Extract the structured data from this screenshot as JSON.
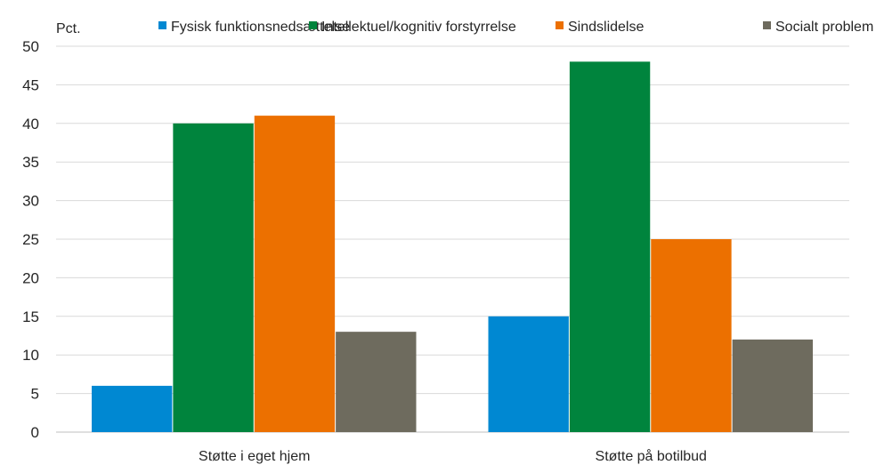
{
  "chart_data": {
    "type": "bar",
    "ylabel": "Pct.",
    "categories": [
      "Støtte i eget hjem",
      "Støtte på botilbud"
    ],
    "series": [
      {
        "name": "Fysisk funktionsnedsættelse",
        "color": "#0088d2",
        "values": [
          6,
          15
        ]
      },
      {
        "name": "Intellektuel/kognitiv forstyrrelse",
        "color": "#00843d",
        "values": [
          40,
          48
        ]
      },
      {
        "name": "Sindslidelse",
        "color": "#ec7000",
        "values": [
          41,
          25
        ]
      },
      {
        "name": "Socialt problem",
        "color": "#6e6b5e",
        "values": [
          13,
          12
        ]
      }
    ],
    "ylim": [
      0,
      50
    ],
    "yticks": [
      0,
      5,
      10,
      15,
      20,
      25,
      30,
      35,
      40,
      45,
      50
    ],
    "grid": true,
    "legend_position": "top"
  }
}
